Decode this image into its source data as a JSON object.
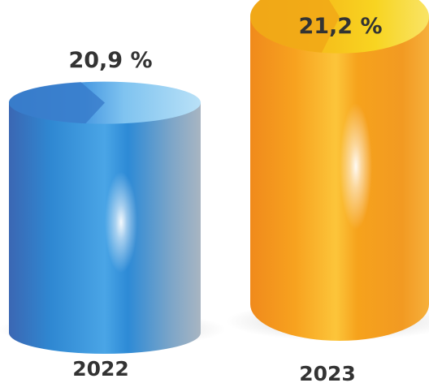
{
  "chart_data": {
    "type": "bar",
    "title": "",
    "xlabel": "",
    "ylabel": "",
    "categories": [
      "2022",
      "2023"
    ],
    "values": [
      20.9,
      21.2
    ],
    "value_labels": [
      "20,9 %",
      "21,2 %"
    ],
    "colors": [
      "#2f8fd8",
      "#f79a1e"
    ],
    "style": "3d-cylinder",
    "grid": false,
    "legend": "none"
  }
}
